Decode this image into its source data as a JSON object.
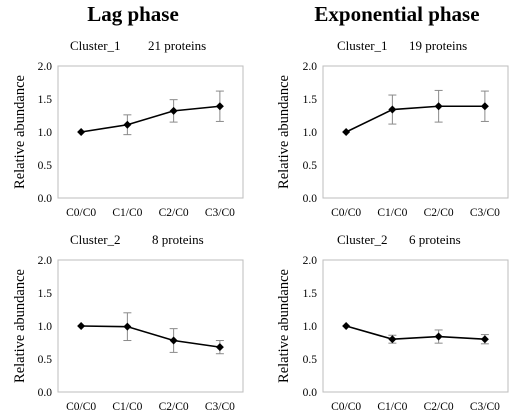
{
  "columns": [
    "Lag phase",
    "Exponential phase"
  ],
  "chart_data": [
    {
      "type": "line",
      "column_title": "Lag phase",
      "cluster": "Cluster_1",
      "count": "21 proteins",
      "ylabel": "Relative abundance",
      "categories": [
        "C0/C0",
        "C1/C0",
        "C2/C0",
        "C3/C0"
      ],
      "values": [
        1.0,
        1.11,
        1.32,
        1.39
      ],
      "errors": [
        0.0,
        0.15,
        0.17,
        0.23
      ],
      "ylim": [
        0.0,
        2.0
      ],
      "yticks": [
        "0.0",
        "0.5",
        "1.0",
        "1.5",
        "2.0"
      ]
    },
    {
      "type": "line",
      "column_title": "Exponential phase",
      "cluster": "Cluster_1",
      "count": "19 proteins",
      "ylabel": "Relative abundance",
      "categories": [
        "C0/C0",
        "C1/C0",
        "C2/C0",
        "C3/C0"
      ],
      "values": [
        1.0,
        1.34,
        1.39,
        1.39
      ],
      "errors": [
        0.0,
        0.22,
        0.24,
        0.23
      ],
      "ylim": [
        0.0,
        2.0
      ],
      "yticks": [
        "0.0",
        "0.5",
        "1.0",
        "1.5",
        "2.0"
      ]
    },
    {
      "type": "line",
      "column_title": "Lag phase",
      "cluster": "Cluster_2",
      "count": "8 proteins",
      "ylabel": "Relative abundance",
      "categories": [
        "C0/C0",
        "C1/C0",
        "C2/C0",
        "C3/C0"
      ],
      "values": [
        1.0,
        0.99,
        0.78,
        0.68
      ],
      "errors": [
        0.0,
        0.21,
        0.18,
        0.1
      ],
      "ylim": [
        0.0,
        2.0
      ],
      "yticks": [
        "0.0",
        "0.5",
        "1.0",
        "1.5",
        "2.0"
      ]
    },
    {
      "type": "line",
      "column_title": "Exponential phase",
      "cluster": "Cluster_2",
      "count": "6 proteins",
      "ylabel": "Relative abundance",
      "categories": [
        "C0/C0",
        "C1/C0",
        "C2/C0",
        "C3/C0"
      ],
      "values": [
        1.0,
        0.8,
        0.84,
        0.8
      ],
      "errors": [
        0.0,
        0.06,
        0.1,
        0.07
      ],
      "ylim": [
        0.0,
        2.0
      ],
      "yticks": [
        "0.0",
        "0.5",
        "1.0",
        "1.5",
        "2.0"
      ]
    }
  ]
}
